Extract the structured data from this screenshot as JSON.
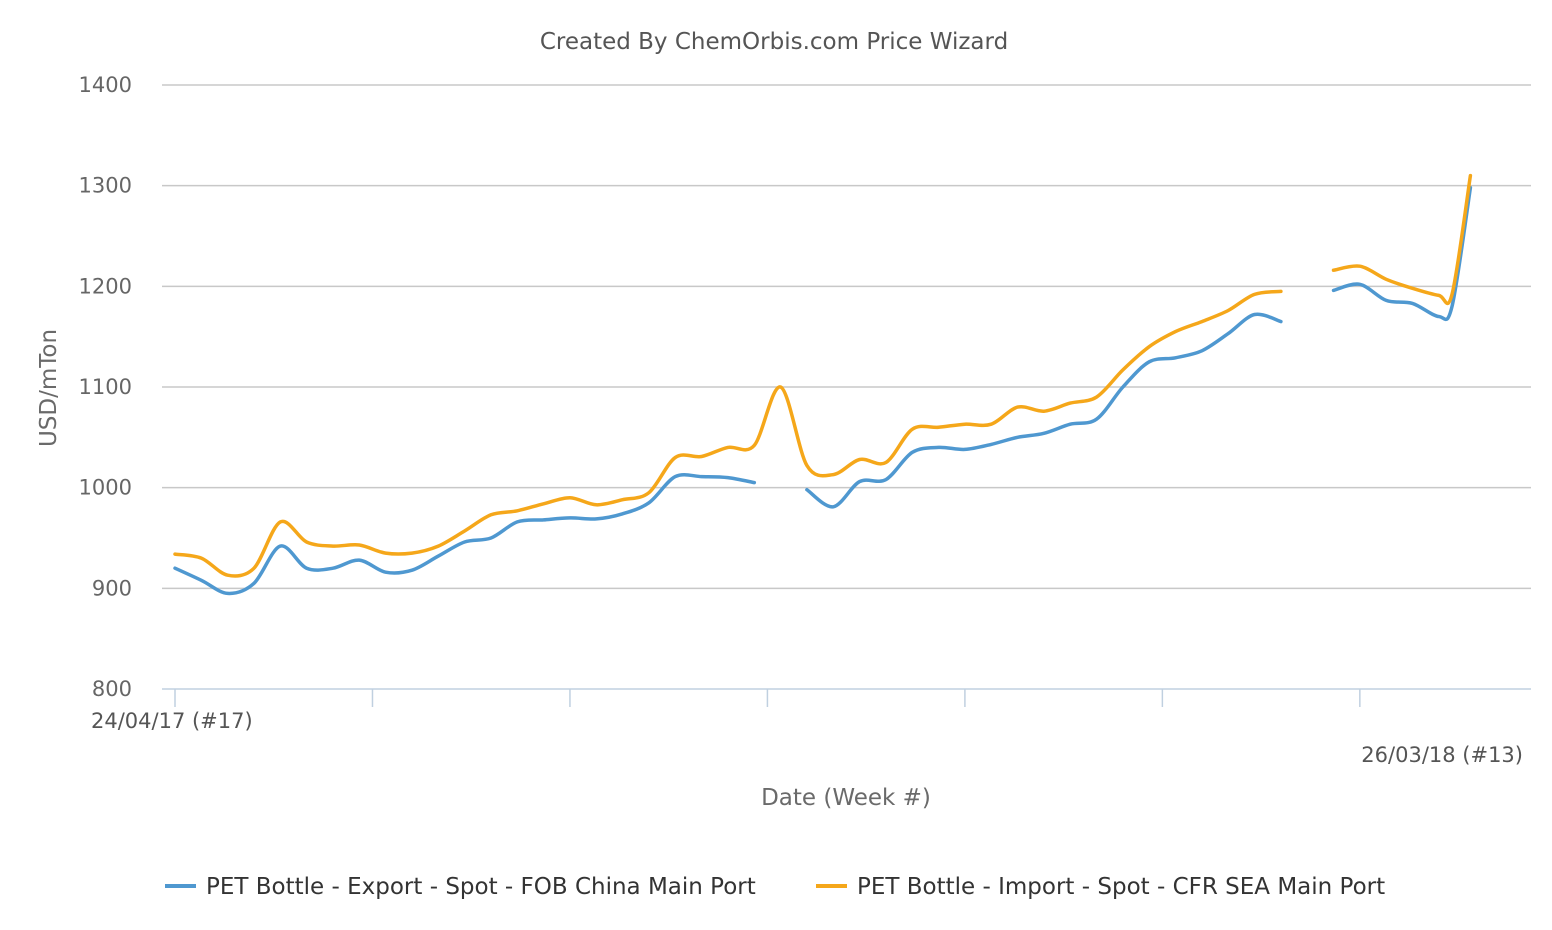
{
  "chart_data": {
    "type": "line",
    "title": "Created By ChemOrbis.com Price Wizard",
    "xlabel": "Date (Week #)",
    "ylabel": "USD/mTon",
    "ylim": [
      800,
      1400
    ],
    "yticks": [
      800,
      900,
      1000,
      1100,
      1200,
      1300,
      1400
    ],
    "grid": true,
    "legend_position": "bottom",
    "x_start_label": "24/04/17 (#17)",
    "x_end_label": "26/03/18 (#13)",
    "x_range": [
      0,
      48
    ],
    "x_major_ticks": [
      0,
      7.5,
      15,
      22.5,
      30,
      37.5,
      45
    ],
    "x": [
      0,
      1,
      2,
      3,
      4,
      5,
      6,
      7,
      8,
      9,
      10,
      11,
      12,
      13,
      14,
      15,
      16,
      17,
      18,
      19,
      20,
      21,
      22,
      23,
      24,
      25,
      26,
      27,
      28,
      29,
      30,
      31,
      32,
      33,
      34,
      35,
      36,
      37,
      38,
      39,
      40,
      41,
      42,
      43,
      44,
      45,
      46,
      47,
      48
    ],
    "series": [
      {
        "name": "PET Bottle - Export - Spot - FOB China Main Port",
        "color": "#4f98d0",
        "values": [
          920,
          908,
          895,
          905,
          942,
          920,
          920,
          928,
          916,
          918,
          932,
          946,
          950,
          966,
          968,
          970,
          969,
          974,
          985,
          1011,
          1011,
          1010,
          1005,
          null,
          998,
          981,
          1006,
          1008,
          1035,
          1040,
          1038,
          1043,
          1050,
          1054,
          1063,
          1068,
          1100,
          1125,
          1129,
          1136,
          1153,
          1172,
          1165,
          null,
          1196,
          1202,
          1186,
          1183,
          1170
        ]
      },
      {
        "name": "PET Bottle - Import - Spot - CFR SEA Main Port",
        "color": "#f5a71a",
        "values": [
          934,
          930,
          913,
          920,
          966,
          946,
          942,
          943,
          935,
          935,
          942,
          957,
          973,
          977,
          984,
          990,
          983,
          988,
          995,
          1030,
          1031,
          1040,
          1042,
          1100,
          1022,
          1013,
          1028,
          1025,
          1058,
          1060,
          1063,
          1063,
          1080,
          1076,
          1084,
          1090,
          1117,
          1140,
          1155,
          1165,
          1176,
          1192,
          1195,
          null,
          1216,
          1220,
          1207,
          1198,
          1191
        ]
      }
    ],
    "extension_note_x": [
      48,
      49.2
    ],
    "series_tail": [
      {
        "x": [
          48,
          48.5,
          49.2
        ],
        "values": [
          1170,
          1180,
          1298
        ]
      },
      {
        "x": [
          48,
          48.5,
          49.2
        ],
        "values": [
          1191,
          1192,
          1310
        ]
      }
    ]
  }
}
